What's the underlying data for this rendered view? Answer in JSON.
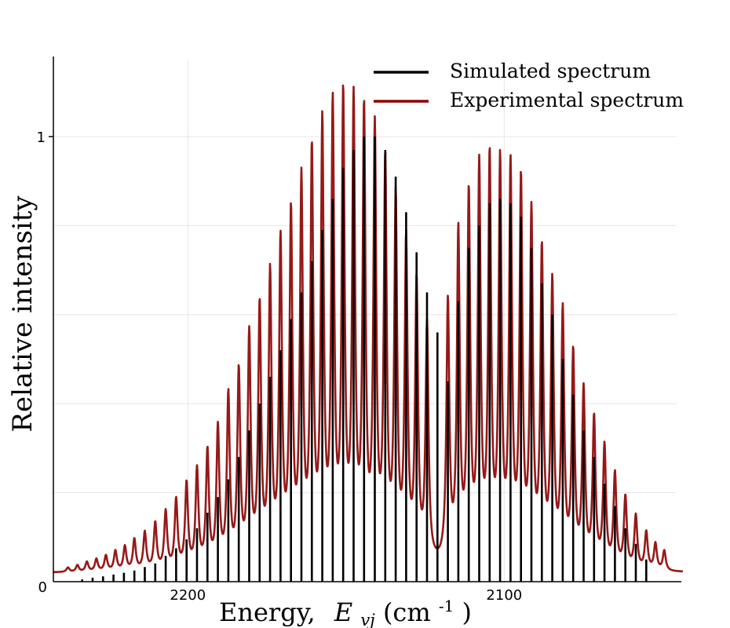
{
  "chart_data": {
    "type": "line",
    "xlabel_main": "Energy,",
    "xlabel_var": "E",
    "xlabel_sub": "vj",
    "xlabel_unit": "(cm",
    "xlabel_unit_exp": "-1",
    "xlabel_unit_close": ")",
    "ylabel": "Relative intensity",
    "x_reversed": true,
    "xlim": [
      2242.5,
      2045.5
    ],
    "ylim": [
      0,
      1.1
    ],
    "xticks": [
      2200,
      2100
    ],
    "yticks": [
      {
        "value": 0,
        "label": "0"
      },
      {
        "value": 1,
        "label": "1"
      }
    ],
    "grid": true,
    "legend_position": "top-right",
    "colors": {
      "simulated": "#000000",
      "experimental": "#8b0000",
      "grid": "#e6e6e6",
      "axis": "#000000"
    },
    "series": [
      {
        "name": "Simulated spectrum",
        "style": "sticks",
        "x": [
          2233.4,
          2230.1,
          2226.8,
          2223.5,
          2220.2,
          2216.9,
          2213.6,
          2210.3,
          2207.0,
          2203.7,
          2200.4,
          2197.1,
          2193.8,
          2190.5,
          2187.2,
          2183.9,
          2180.6,
          2177.3,
          2174.0,
          2170.7,
          2167.4,
          2164.1,
          2160.8,
          2157.5,
          2154.2,
          2150.9,
          2147.6,
          2144.3,
          2140.9,
          2137.6,
          2134.3,
          2131.0,
          2127.7,
          2124.4,
          2121.1,
          2117.8,
          2114.5,
          2111.2,
          2107.9,
          2104.6,
          2101.3,
          2098.0,
          2094.7,
          2091.4,
          2088.1,
          2084.8,
          2081.5,
          2078.2,
          2074.9,
          2071.6,
          2068.3,
          2065.0,
          2061.7,
          2058.4,
          2055.1
        ],
        "y": [
          0.005,
          0.009,
          0.012,
          0.016,
          0.02,
          0.025,
          0.033,
          0.041,
          0.058,
          0.075,
          0.095,
          0.12,
          0.155,
          0.19,
          0.23,
          0.28,
          0.34,
          0.4,
          0.46,
          0.52,
          0.59,
          0.65,
          0.72,
          0.79,
          0.86,
          0.93,
          0.97,
          1.0,
          1.0,
          0.97,
          0.91,
          0.83,
          0.74,
          0.65,
          0.56,
          0.45,
          0.63,
          0.75,
          0.8,
          0.85,
          0.86,
          0.85,
          0.82,
          0.75,
          0.67,
          0.6,
          0.5,
          0.42,
          0.34,
          0.28,
          0.22,
          0.17,
          0.12,
          0.085,
          0.05
        ]
      },
      {
        "name": "Experimental spectrum",
        "style": "line",
        "peak_width": 0.55,
        "baseline": 0.02,
        "peaks_x": [
          2237.9,
          2234.9,
          2231.9,
          2228.9,
          2225.9,
          2222.9,
          2219.9,
          2216.9,
          2213.6,
          2210.3,
          2207.0,
          2203.7,
          2200.4,
          2197.1,
          2193.8,
          2190.5,
          2187.2,
          2183.9,
          2180.6,
          2177.3,
          2174.0,
          2170.7,
          2167.4,
          2164.1,
          2160.8,
          2157.5,
          2154.2,
          2150.9,
          2147.6,
          2144.3,
          2140.9,
          2137.6,
          2134.3,
          2131.0,
          2127.7,
          2124.4,
          2117.8,
          2114.5,
          2111.2,
          2107.9,
          2104.6,
          2101.3,
          2098.0,
          2094.7,
          2091.4,
          2088.1,
          2084.8,
          2081.5,
          2078.2,
          2074.9,
          2071.6,
          2068.3,
          2065.0,
          2061.7,
          2058.4,
          2055.1,
          2052.2,
          2049.4
        ],
        "peaks_y": [
          0.01,
          0.015,
          0.022,
          0.028,
          0.035,
          0.045,
          0.055,
          0.07,
          0.085,
          0.105,
          0.13,
          0.155,
          0.19,
          0.22,
          0.26,
          0.31,
          0.38,
          0.43,
          0.51,
          0.57,
          0.64,
          0.71,
          0.77,
          0.84,
          0.9,
          0.96,
          1.0,
          1.02,
          1.01,
          0.99,
          0.95,
          0.88,
          0.8,
          0.71,
          0.62,
          0.53,
          0.58,
          0.73,
          0.81,
          0.87,
          0.89,
          0.88,
          0.87,
          0.84,
          0.77,
          0.69,
          0.62,
          0.56,
          0.47,
          0.39,
          0.33,
          0.27,
          0.21,
          0.16,
          0.12,
          0.085,
          0.06,
          0.045
        ]
      }
    ]
  }
}
